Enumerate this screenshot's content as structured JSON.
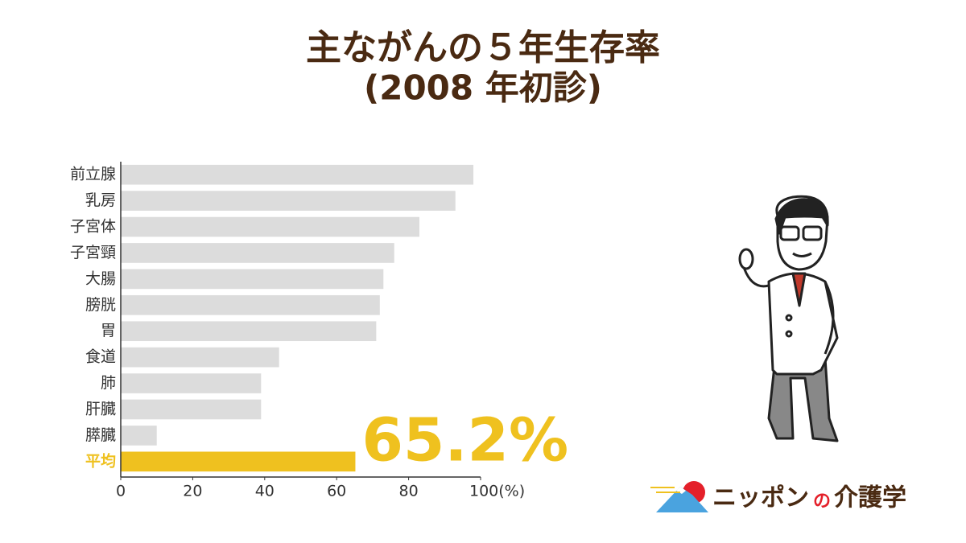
{
  "chart_data": {
    "type": "barh",
    "title": "主ながんの５年生存率",
    "subtitle": "(2008 年初診)",
    "categories": [
      "前立腺",
      "乳房",
      "子宮体",
      "子宮頸",
      "大腸",
      "膀胱",
      "胃",
      "食道",
      "肺",
      "肝臓",
      "膵臓",
      "平均"
    ],
    "values": [
      98,
      93,
      83,
      76,
      73,
      72,
      71,
      44,
      39,
      39,
      10,
      65.2
    ],
    "value_labels": [
      null,
      null,
      null,
      null,
      null,
      null,
      null,
      null,
      null,
      null,
      null,
      "65.2%"
    ],
    "colors": [
      "#dcdcdc",
      "#dcdcdc",
      "#dcdcdc",
      "#dcdcdc",
      "#dcdcdc",
      "#dcdcdc",
      "#dcdcdc",
      "#dcdcdc",
      "#dcdcdc",
      "#dcdcdc",
      "#dcdcdc",
      "#efc11f"
    ],
    "label_colors": [
      "#333333",
      "#333333",
      "#333333",
      "#333333",
      "#333333",
      "#333333",
      "#333333",
      "#333333",
      "#333333",
      "#333333",
      "#333333",
      "#efc11f"
    ],
    "xlim": [
      0,
      100
    ],
    "xticks": [
      0,
      20,
      40,
      60,
      80,
      {
        "value": 100,
        "label": "100(%)"
      }
    ],
    "grid": false
  },
  "logo": {
    "brand": "ニッポン",
    "particle": "の",
    "name": "介護学"
  }
}
